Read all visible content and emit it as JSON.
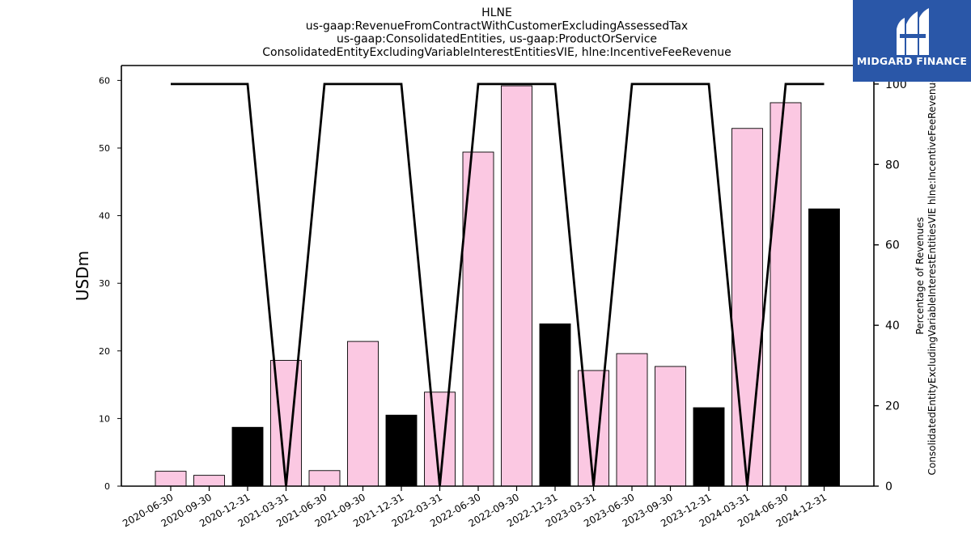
{
  "chart_data": {
    "type": "bar",
    "title_lines": [
      "HLNE",
      "us-gaap:RevenueFromContractWithCustomerExcludingAssessedTax",
      "us-gaap:ConsolidatedEntities, us-gaap:ProductOrService",
      "ConsolidatedEntityExcludingVariableInterestEntitiesVIE, hlne:IncentiveFeeRevenue"
    ],
    "categories": [
      "2020-06-30",
      "2020-09-30",
      "2020-12-31",
      "2021-03-31",
      "2021-06-30",
      "2021-09-30",
      "2021-12-31",
      "2022-03-31",
      "2022-06-30",
      "2022-09-30",
      "2022-12-31",
      "2023-03-31",
      "2023-06-30",
      "2023-09-30",
      "2023-12-31",
      "2024-03-31",
      "2024-06-30",
      "2024-12-31"
    ],
    "series": [
      {
        "axis": "left",
        "type": "bar",
        "values": [
          2.2,
          1.6,
          8.7,
          18.6,
          2.3,
          21.4,
          10.5,
          13.9,
          49.4,
          59.2,
          24.0,
          17.1,
          19.6,
          17.7,
          11.6,
          52.9,
          56.7,
          41.0
        ],
        "colors": [
          "#fbc8e2",
          "#fbc8e2",
          "#000000",
          "#fbc8e2",
          "#fbc8e2",
          "#fbc8e2",
          "#000000",
          "#fbc8e2",
          "#fbc8e2",
          "#fbc8e2",
          "#000000",
          "#fbc8e2",
          "#fbc8e2",
          "#fbc8e2",
          "#000000",
          "#fbc8e2",
          "#fbc8e2",
          "#000000"
        ]
      },
      {
        "axis": "right",
        "type": "line",
        "color": "#000000",
        "values": [
          100,
          100,
          100,
          0,
          100,
          100,
          100,
          0,
          100,
          100,
          100,
          0,
          100,
          100,
          100,
          0,
          100,
          100
        ]
      }
    ],
    "ylabel": "USDm",
    "y2label_lines": [
      "Percentage of Revenues",
      "ConsolidatedEntityExcludingVariableInterestEntitiesVIE hlne:IncentiveFeeRevenue"
    ],
    "ylim": [
      0,
      62.2
    ],
    "yticks": [
      0,
      10,
      20,
      30,
      40,
      50,
      60
    ],
    "y2lim": [
      0,
      104.6
    ],
    "y2ticks": [
      0,
      20,
      40,
      60,
      80,
      100
    ],
    "grid": false,
    "legend": "none"
  },
  "logo": {
    "text": "MIDGARD FINANCE",
    "color": "#2a57a8"
  }
}
